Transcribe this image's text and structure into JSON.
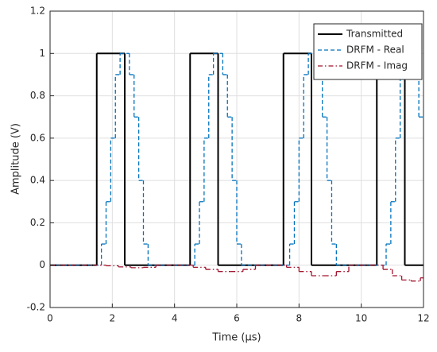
{
  "chart_data": {
    "type": "line",
    "step": true,
    "xlabel": "Time (μs)",
    "ylabel": "Amplitude (V)",
    "xlim": [
      0,
      12
    ],
    "xticks": [
      0,
      2,
      4,
      6,
      8,
      10,
      12
    ],
    "ylim": [
      -0.2,
      1.2
    ],
    "yticks": [
      -0.2,
      0,
      0.2,
      0.4,
      0.6,
      0.8,
      1,
      1.2
    ],
    "grid": true,
    "legend": "northeast",
    "series": [
      {
        "name": "Transmitted",
        "color": "#000000",
        "style": "solid",
        "x": [
          0,
          1.5,
          2.4,
          4.5,
          5.4,
          7.5,
          8.4,
          10.5,
          11.4,
          12
        ],
        "values": [
          0,
          1,
          0,
          1,
          0,
          1,
          0,
          1,
          0,
          0
        ]
      },
      {
        "name": "DRFM - Real",
        "color": "#0072bd",
        "style": "dashed",
        "x": [
          0,
          1.65,
          1.8,
          1.95,
          2.1,
          2.25,
          2.55,
          2.7,
          2.85,
          3.0,
          3.15,
          4.65,
          4.8,
          4.95,
          5.1,
          5.25,
          5.55,
          5.7,
          5.85,
          6.0,
          6.15,
          7.7,
          7.85,
          8.0,
          8.15,
          8.3,
          8.6,
          8.75,
          8.9,
          9.05,
          9.2,
          10.8,
          10.95,
          11.1,
          11.25,
          11.4,
          11.7,
          11.85,
          12
        ],
        "values": [
          0,
          0.1,
          0.3,
          0.6,
          0.9,
          1,
          0.9,
          0.7,
          0.4,
          0.1,
          0,
          0.1,
          0.3,
          0.6,
          0.9,
          1,
          0.9,
          0.7,
          0.4,
          0.1,
          0,
          0.1,
          0.3,
          0.6,
          0.9,
          1,
          0.9,
          0.7,
          0.4,
          0.1,
          0,
          0.1,
          0.3,
          0.6,
          0.9,
          1,
          0.9,
          0.7,
          0.7
        ]
      },
      {
        "name": "DRFM - Imag",
        "color": "#a2142f",
        "style": "dashdot",
        "x": [
          0,
          1.8,
          2.2,
          2.6,
          3.0,
          3.4,
          4.6,
          5.0,
          5.4,
          5.8,
          6.2,
          6.6,
          7.6,
          8.0,
          8.4,
          8.8,
          9.2,
          9.6,
          10.7,
          11.0,
          11.3,
          11.6,
          11.9,
          12
        ],
        "values": [
          0,
          -0.003,
          -0.008,
          -0.012,
          -0.01,
          0,
          -0.01,
          -0.02,
          -0.03,
          -0.03,
          -0.02,
          0,
          -0.01,
          -0.03,
          -0.05,
          -0.05,
          -0.03,
          0,
          -0.02,
          -0.05,
          -0.07,
          -0.075,
          -0.06,
          -0.06
        ]
      }
    ]
  }
}
